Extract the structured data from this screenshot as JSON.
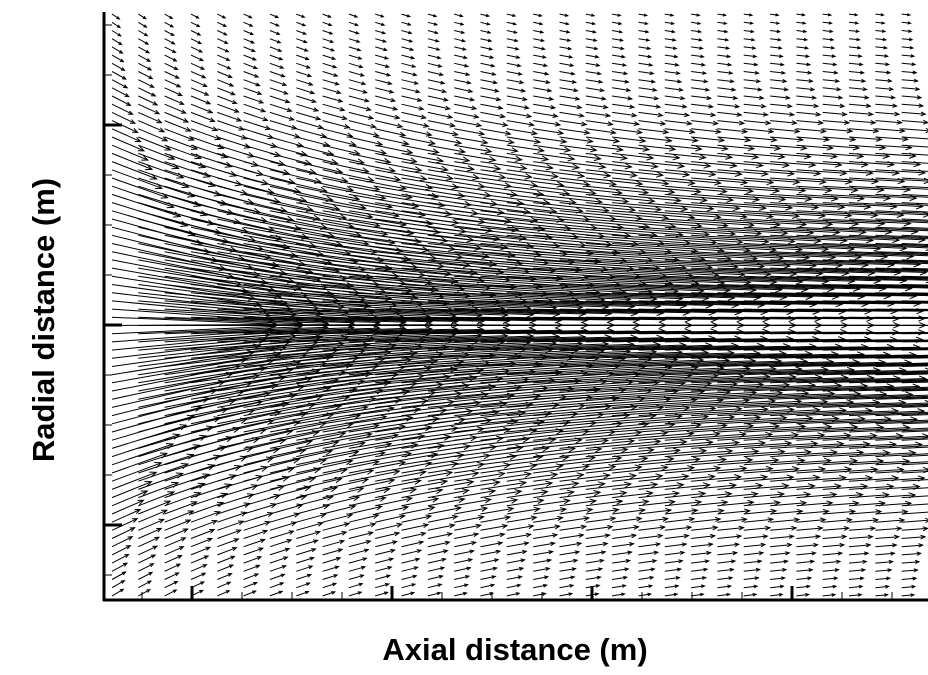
{
  "chart_data": {
    "type": "vector field (quiver)",
    "title": "",
    "xlabel": "Axial distance (m)",
    "ylabel": "Radial distance (m)",
    "tick_labels_shown": false,
    "grid": false,
    "legend": "none",
    "x_columns": 32,
    "y_rows": 72,
    "description_of_field": "Axial (rightward) velocity vectors; magnitude peaks on the centerline and decays toward top and bottom; near the inlet, vectors above the centerline tilt downward (toward axis) and vectors below tilt upward, straightening downstream."
  },
  "colors": {
    "arrow": "#000000",
    "axis": "#000000",
    "background": "#ffffff"
  }
}
